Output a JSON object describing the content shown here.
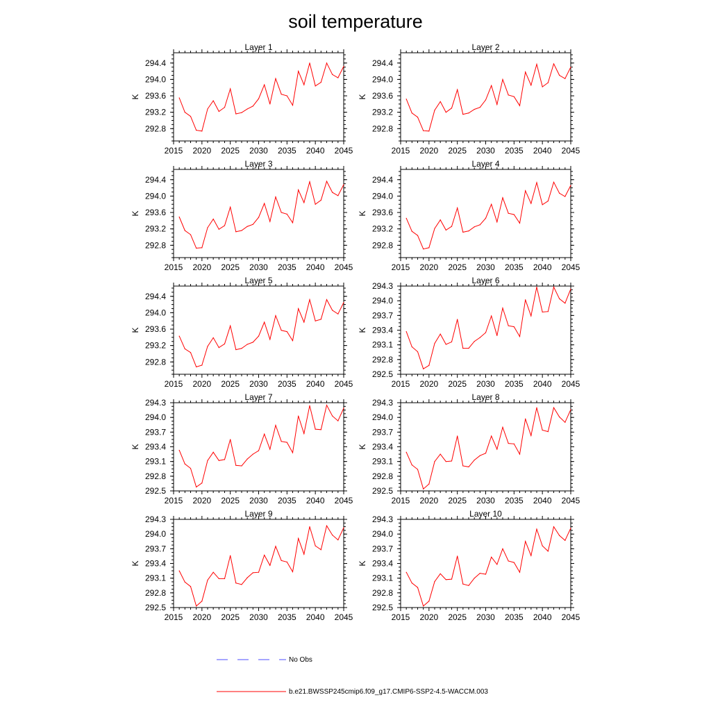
{
  "title": "soil temperature",
  "colors": {
    "series": "#ff0000",
    "obs": "#4d4dff",
    "axis": "#000000"
  },
  "legend": {
    "obs_label": "No Obs",
    "series_label": "b.e21.BWSSP245cmip6.f09_g17.CMIP6-SSP2-4.5-WACCM.003"
  },
  "chart_data": [
    {
      "type": "line",
      "title": "Layer 1",
      "ylabel": "K",
      "xlim": [
        2015,
        2045
      ],
      "ylim": [
        292.5,
        294.65
      ],
      "xticks": [
        2015,
        2020,
        2025,
        2030,
        2035,
        2040,
        2045
      ],
      "yticks": [
        292.8,
        293.2,
        293.6,
        294.0,
        294.4
      ],
      "ytick_labels": [
        "292.8",
        "293.2",
        "293.6",
        "294.0",
        "294.4"
      ],
      "x": [
        2016,
        2017,
        2018,
        2019,
        2020,
        2021,
        2022,
        2023,
        2024,
        2025,
        2026,
        2027,
        2028,
        2029,
        2030,
        2031,
        2032,
        2033,
        2034,
        2035,
        2036,
        2037,
        2038,
        2039,
        2040,
        2041,
        2042,
        2043,
        2044,
        2045
      ],
      "values": [
        293.55,
        293.2,
        293.1,
        292.76,
        292.74,
        293.28,
        293.48,
        293.22,
        293.32,
        293.77,
        293.16,
        293.19,
        293.28,
        293.35,
        293.53,
        293.87,
        293.4,
        294.02,
        293.64,
        293.6,
        293.37,
        294.2,
        293.87,
        294.4,
        293.84,
        293.93,
        294.4,
        294.12,
        294.04,
        294.32
      ]
    },
    {
      "type": "line",
      "title": "Layer 2",
      "ylabel": "K",
      "xlim": [
        2015,
        2045
      ],
      "ylim": [
        292.5,
        294.65
      ],
      "xticks": [
        2015,
        2020,
        2025,
        2030,
        2035,
        2040,
        2045
      ],
      "yticks": [
        292.8,
        293.2,
        293.6,
        294.0,
        294.4
      ],
      "ytick_labels": [
        "292.8",
        "293.2",
        "293.6",
        "294.0",
        "294.4"
      ],
      "x": [
        2016,
        2017,
        2018,
        2019,
        2020,
        2021,
        2022,
        2023,
        2024,
        2025,
        2026,
        2027,
        2028,
        2029,
        2030,
        2031,
        2032,
        2033,
        2034,
        2035,
        2036,
        2037,
        2038,
        2039,
        2040,
        2041,
        2042,
        2043,
        2044,
        2045
      ],
      "values": [
        293.52,
        293.18,
        293.08,
        292.75,
        292.74,
        293.25,
        293.46,
        293.2,
        293.3,
        293.75,
        293.15,
        293.18,
        293.27,
        293.32,
        293.5,
        293.85,
        293.39,
        294.0,
        293.62,
        293.58,
        293.36,
        294.18,
        293.86,
        294.37,
        293.82,
        293.92,
        294.38,
        294.1,
        294.02,
        294.3
      ]
    },
    {
      "type": "line",
      "title": "Layer 3",
      "ylabel": "K",
      "xlim": [
        2015,
        2045
      ],
      "ylim": [
        292.5,
        294.65
      ],
      "xticks": [
        2015,
        2020,
        2025,
        2030,
        2035,
        2040,
        2045
      ],
      "yticks": [
        292.8,
        293.2,
        293.6,
        294.0,
        294.4
      ],
      "ytick_labels": [
        "292.8",
        "293.2",
        "293.6",
        "294.0",
        "294.4"
      ],
      "x": [
        2016,
        2017,
        2018,
        2019,
        2020,
        2021,
        2022,
        2023,
        2024,
        2025,
        2026,
        2027,
        2028,
        2029,
        2030,
        2031,
        2032,
        2033,
        2034,
        2035,
        2036,
        2037,
        2038,
        2039,
        2040,
        2041,
        2042,
        2043,
        2044,
        2045
      ],
      "values": [
        293.49,
        293.16,
        293.06,
        292.73,
        292.74,
        293.23,
        293.44,
        293.19,
        293.28,
        293.73,
        293.13,
        293.16,
        293.26,
        293.31,
        293.48,
        293.82,
        293.38,
        293.98,
        293.6,
        293.56,
        293.35,
        294.15,
        293.84,
        294.35,
        293.8,
        293.9,
        294.36,
        294.09,
        294.01,
        294.28
      ]
    },
    {
      "type": "line",
      "title": "Layer 4",
      "ylabel": "K",
      "xlim": [
        2015,
        2045
      ],
      "ylim": [
        292.5,
        294.65
      ],
      "xticks": [
        2015,
        2020,
        2025,
        2030,
        2035,
        2040,
        2045
      ],
      "yticks": [
        292.8,
        293.2,
        293.6,
        294.0,
        294.4
      ],
      "ytick_labels": [
        "292.8",
        "293.2",
        "293.6",
        "294.0",
        "294.4"
      ],
      "x": [
        2016,
        2017,
        2018,
        2019,
        2020,
        2021,
        2022,
        2023,
        2024,
        2025,
        2026,
        2027,
        2028,
        2029,
        2030,
        2031,
        2032,
        2033,
        2034,
        2035,
        2036,
        2037,
        2038,
        2039,
        2040,
        2041,
        2042,
        2043,
        2044,
        2045
      ],
      "values": [
        293.46,
        293.14,
        293.04,
        292.71,
        292.74,
        293.21,
        293.42,
        293.17,
        293.26,
        293.71,
        293.12,
        293.15,
        293.25,
        293.3,
        293.46,
        293.8,
        293.37,
        293.96,
        293.58,
        293.55,
        293.34,
        294.13,
        293.82,
        294.33,
        293.79,
        293.88,
        294.34,
        294.07,
        293.99,
        294.26
      ]
    },
    {
      "type": "line",
      "title": "Layer 5",
      "ylabel": "K",
      "xlim": [
        2015,
        2045
      ],
      "ylim": [
        292.5,
        294.65
      ],
      "xticks": [
        2015,
        2020,
        2025,
        2030,
        2035,
        2040,
        2045
      ],
      "yticks": [
        292.8,
        293.2,
        293.6,
        294.0,
        294.4
      ],
      "ytick_labels": [
        "292.8",
        "293.2",
        "293.6",
        "294.0",
        "294.4"
      ],
      "x": [
        2016,
        2017,
        2018,
        2019,
        2020,
        2021,
        2022,
        2023,
        2024,
        2025,
        2026,
        2027,
        2028,
        2029,
        2030,
        2031,
        2032,
        2033,
        2034,
        2035,
        2036,
        2037,
        2038,
        2039,
        2040,
        2041,
        2042,
        2043,
        2044,
        2045
      ],
      "values": [
        293.43,
        293.12,
        293.03,
        292.68,
        292.72,
        293.18,
        293.39,
        293.15,
        293.24,
        293.68,
        293.1,
        293.13,
        293.23,
        293.28,
        293.43,
        293.77,
        293.35,
        293.93,
        293.57,
        293.54,
        293.32,
        294.1,
        293.77,
        294.32,
        293.8,
        293.84,
        294.32,
        294.06,
        293.97,
        294.25
      ]
    },
    {
      "type": "line",
      "title": "Layer 6",
      "ylabel": "K",
      "xlim": [
        2015,
        2045
      ],
      "ylim": [
        292.5,
        294.3
      ],
      "xticks": [
        2015,
        2020,
        2025,
        2030,
        2035,
        2040,
        2045
      ],
      "yticks": [
        292.5,
        292.8,
        293.1,
        293.4,
        293.7,
        294.0,
        294.3
      ],
      "ytick_labels": [
        "292.5",
        "292.8",
        "293.1",
        "293.4",
        "293.7",
        "294.0",
        "294.3"
      ],
      "x": [
        2016,
        2017,
        2018,
        2019,
        2020,
        2021,
        2022,
        2023,
        2024,
        2025,
        2026,
        2027,
        2028,
        2029,
        2030,
        2031,
        2032,
        2033,
        2034,
        2035,
        2036,
        2037,
        2038,
        2039,
        2040,
        2041,
        2042,
        2043,
        2044,
        2045
      ],
      "values": [
        293.37,
        293.06,
        292.96,
        292.61,
        292.68,
        293.13,
        293.32,
        293.11,
        293.16,
        293.62,
        293.03,
        293.03,
        293.17,
        293.25,
        293.35,
        293.69,
        293.29,
        293.85,
        293.49,
        293.47,
        293.27,
        294.02,
        293.69,
        294.28,
        293.77,
        293.78,
        294.28,
        294.04,
        293.95,
        294.24
      ]
    },
    {
      "type": "line",
      "title": "Layer 7",
      "ylabel": "K",
      "xlim": [
        2015,
        2045
      ],
      "ylim": [
        292.5,
        294.3
      ],
      "xticks": [
        2015,
        2020,
        2025,
        2030,
        2035,
        2040,
        2045
      ],
      "yticks": [
        292.5,
        292.8,
        293.1,
        293.4,
        293.7,
        294.0,
        294.3
      ],
      "ytick_labels": [
        "292.5",
        "292.8",
        "293.1",
        "293.4",
        "293.7",
        "294.0",
        "294.3"
      ],
      "x": [
        2016,
        2017,
        2018,
        2019,
        2020,
        2021,
        2022,
        2023,
        2024,
        2025,
        2026,
        2027,
        2028,
        2029,
        2030,
        2031,
        2032,
        2033,
        2034,
        2035,
        2036,
        2037,
        2038,
        2039,
        2040,
        2041,
        2042,
        2043,
        2044,
        2045
      ],
      "values": [
        293.33,
        293.05,
        292.96,
        292.58,
        292.66,
        293.12,
        293.29,
        293.12,
        293.14,
        293.55,
        293.02,
        293.01,
        293.15,
        293.25,
        293.32,
        293.66,
        293.35,
        293.84,
        293.51,
        293.49,
        293.28,
        294.03,
        293.67,
        294.24,
        293.76,
        293.75,
        294.25,
        294.03,
        293.93,
        294.19
      ]
    },
    {
      "type": "line",
      "title": "Layer 8",
      "ylabel": "K",
      "xlim": [
        2015,
        2045
      ],
      "ylim": [
        292.5,
        294.3
      ],
      "xticks": [
        2015,
        2020,
        2025,
        2030,
        2035,
        2040,
        2045
      ],
      "yticks": [
        292.5,
        292.8,
        293.1,
        293.4,
        293.7,
        294.0,
        294.3
      ],
      "ytick_labels": [
        "292.5",
        "292.8",
        "293.1",
        "293.4",
        "293.7",
        "294.0",
        "294.3"
      ],
      "x": [
        2016,
        2017,
        2018,
        2019,
        2020,
        2021,
        2022,
        2023,
        2024,
        2025,
        2026,
        2027,
        2028,
        2029,
        2030,
        2031,
        2032,
        2033,
        2034,
        2035,
        2036,
        2037,
        2038,
        2039,
        2040,
        2041,
        2042,
        2043,
        2044,
        2045
      ],
      "values": [
        293.29,
        293.03,
        292.94,
        292.54,
        292.64,
        293.1,
        293.25,
        293.1,
        293.11,
        293.62,
        293.01,
        292.99,
        293.13,
        293.22,
        293.27,
        293.62,
        293.35,
        293.8,
        293.47,
        293.46,
        293.25,
        293.97,
        293.63,
        294.2,
        293.74,
        293.71,
        294.2,
        294.01,
        293.9,
        294.16
      ]
    },
    {
      "type": "line",
      "title": "Layer 9",
      "ylabel": "K",
      "xlim": [
        2015,
        2045
      ],
      "ylim": [
        292.5,
        294.3
      ],
      "xticks": [
        2015,
        2020,
        2025,
        2030,
        2035,
        2040,
        2045
      ],
      "yticks": [
        292.5,
        292.8,
        293.1,
        293.4,
        293.7,
        294.0,
        294.3
      ],
      "ytick_labels": [
        "292.5",
        "292.8",
        "293.1",
        "293.4",
        "293.7",
        "294.0",
        "294.3"
      ],
      "x": [
        2016,
        2017,
        2018,
        2019,
        2020,
        2021,
        2022,
        2023,
        2024,
        2025,
        2026,
        2027,
        2028,
        2029,
        2030,
        2031,
        2032,
        2033,
        2034,
        2035,
        2036,
        2037,
        2038,
        2039,
        2040,
        2041,
        2042,
        2043,
        2044,
        2045
      ],
      "values": [
        293.25,
        293.02,
        292.93,
        292.53,
        292.63,
        293.06,
        293.22,
        293.09,
        293.09,
        293.56,
        293.0,
        292.97,
        293.11,
        293.21,
        293.22,
        293.57,
        293.36,
        293.75,
        293.46,
        293.43,
        293.23,
        293.91,
        293.59,
        294.15,
        293.76,
        293.68,
        294.17,
        293.98,
        293.88,
        294.13
      ]
    },
    {
      "type": "line",
      "title": "Layer 10",
      "ylabel": "K",
      "xlim": [
        2015,
        2045
      ],
      "ylim": [
        292.5,
        294.3
      ],
      "xticks": [
        2015,
        2020,
        2025,
        2030,
        2035,
        2040,
        2045
      ],
      "yticks": [
        292.5,
        292.8,
        293.1,
        293.4,
        293.7,
        294.0,
        294.3
      ],
      "ytick_labels": [
        "292.5",
        "292.8",
        "293.1",
        "293.4",
        "293.7",
        "294.0",
        "294.3"
      ],
      "x": [
        2016,
        2017,
        2018,
        2019,
        2020,
        2021,
        2022,
        2023,
        2024,
        2025,
        2026,
        2027,
        2028,
        2029,
        2030,
        2031,
        2032,
        2033,
        2034,
        2035,
        2036,
        2037,
        2038,
        2039,
        2040,
        2041,
        2042,
        2043,
        2044,
        2045
      ],
      "values": [
        293.22,
        293.0,
        292.91,
        292.53,
        292.63,
        293.03,
        293.19,
        293.07,
        293.08,
        293.55,
        292.98,
        292.95,
        293.1,
        293.2,
        293.18,
        293.53,
        293.38,
        293.7,
        293.45,
        293.42,
        293.22,
        293.85,
        293.56,
        294.1,
        293.76,
        293.65,
        294.15,
        293.97,
        293.87,
        294.12
      ]
    }
  ]
}
